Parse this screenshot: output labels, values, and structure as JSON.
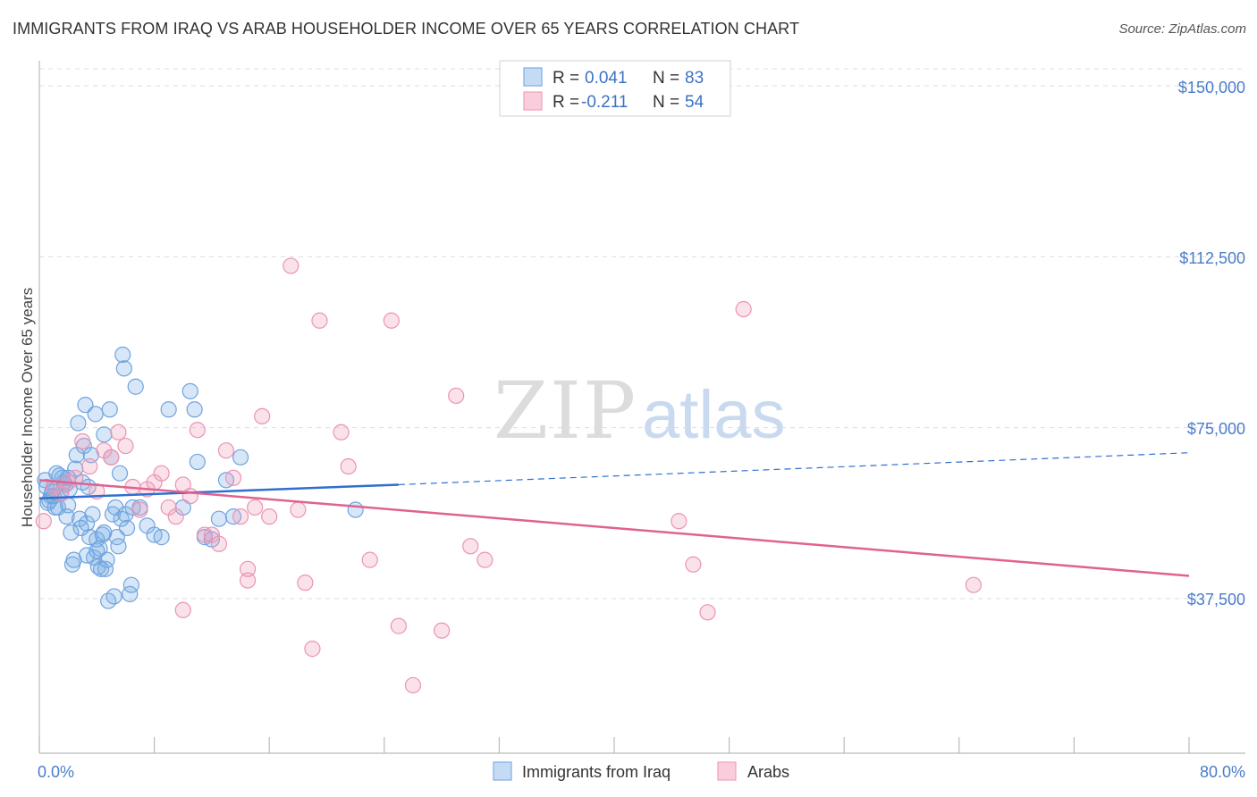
{
  "title": "IMMIGRANTS FROM IRAQ VS ARAB HOUSEHOLDER INCOME OVER 65 YEARS CORRELATION CHART",
  "source": "Source: ZipAtlas.com",
  "watermark": {
    "zip": "ZIP",
    "atlas": "atlas"
  },
  "chart_data": {
    "type": "scatter",
    "xlabel": "",
    "ylabel": "Householder Income Over 65 years",
    "xlim": [
      0,
      80
    ],
    "ylim": [
      7000,
      155000
    ],
    "x_tick_labels": [
      "0.0%",
      "80.0%"
    ],
    "y_ticks": [
      37500,
      75000,
      112500,
      150000
    ],
    "y_tick_labels": [
      "$37,500",
      "$75,000",
      "$112,500",
      "$150,000"
    ],
    "grid": "horizontal dashed",
    "legend_position": "top-center",
    "series": [
      {
        "name": "Immigrants from Iraq",
        "color": "#7aaee6",
        "stat_r_label": "R =",
        "stat_r": "0.041",
        "stat_n_label": "N =",
        "stat_n": "83",
        "trend": {
          "x": [
            0,
            25
          ],
          "y": [
            59500,
            62500
          ],
          "dashed_to": [
            80,
            69500
          ]
        },
        "points": [
          [
            0.4,
            63500
          ],
          [
            0.6,
            58500
          ],
          [
            0.8,
            60000
          ],
          [
            1.0,
            62000
          ],
          [
            1.2,
            65000
          ],
          [
            1.3,
            57500
          ],
          [
            1.5,
            60500
          ],
          [
            1.6,
            64000
          ],
          [
            1.8,
            62500
          ],
          [
            2.0,
            58000
          ],
          [
            2.1,
            61500
          ],
          [
            2.2,
            52000
          ],
          [
            2.3,
            45000
          ],
          [
            2.4,
            46000
          ],
          [
            2.5,
            66000
          ],
          [
            2.6,
            69000
          ],
          [
            2.7,
            76000
          ],
          [
            2.8,
            55000
          ],
          [
            3.0,
            63000
          ],
          [
            3.1,
            71000
          ],
          [
            3.2,
            80000
          ],
          [
            3.3,
            54000
          ],
          [
            3.4,
            62000
          ],
          [
            3.5,
            51000
          ],
          [
            3.6,
            69000
          ],
          [
            3.7,
            56000
          ],
          [
            3.8,
            46500
          ],
          [
            3.9,
            78000
          ],
          [
            4.0,
            50500
          ],
          [
            4.1,
            44500
          ],
          [
            4.2,
            48500
          ],
          [
            4.3,
            44000
          ],
          [
            4.4,
            51500
          ],
          [
            4.5,
            73500
          ],
          [
            4.6,
            44000
          ],
          [
            4.7,
            46000
          ],
          [
            4.8,
            37000
          ],
          [
            4.9,
            79000
          ],
          [
            5.0,
            68500
          ],
          [
            5.1,
            56000
          ],
          [
            5.2,
            38000
          ],
          [
            5.3,
            57500
          ],
          [
            5.4,
            51000
          ],
          [
            5.5,
            49000
          ],
          [
            5.6,
            65000
          ],
          [
            5.7,
            55000
          ],
          [
            5.8,
            91000
          ],
          [
            5.9,
            88000
          ],
          [
            6.0,
            56000
          ],
          [
            6.1,
            53000
          ],
          [
            6.3,
            38500
          ],
          [
            6.4,
            40500
          ],
          [
            6.5,
            57500
          ],
          [
            6.7,
            84000
          ],
          [
            7.0,
            57500
          ],
          [
            7.5,
            53500
          ],
          [
            8.0,
            51500
          ],
          [
            8.5,
            51000
          ],
          [
            9.0,
            79000
          ],
          [
            10.0,
            57500
          ],
          [
            10.5,
            83000
          ],
          [
            10.8,
            79000
          ],
          [
            11.0,
            67500
          ],
          [
            11.5,
            51000
          ],
          [
            12.0,
            50500
          ],
          [
            12.5,
            55000
          ],
          [
            13.0,
            63500
          ],
          [
            13.5,
            55500
          ],
          [
            14.0,
            68500
          ],
          [
            22.0,
            57000
          ],
          [
            0.5,
            62000
          ],
          [
            0.7,
            59000
          ],
          [
            0.9,
            61000
          ],
          [
            1.1,
            57500
          ],
          [
            1.4,
            64500
          ],
          [
            1.7,
            63000
          ],
          [
            1.9,
            55500
          ],
          [
            2.9,
            53000
          ],
          [
            3.3,
            47000
          ],
          [
            4.0,
            48000
          ],
          [
            4.5,
            52000
          ],
          [
            1.0,
            60000
          ],
          [
            2.0,
            64000
          ]
        ]
      },
      {
        "name": "Arabs",
        "color": "#f0a0bc",
        "stat_r_label": "R =",
        "stat_r": "-0.211",
        "stat_n_label": "N =",
        "stat_n": "54",
        "trend": {
          "x": [
            0,
            80
          ],
          "y": [
            63500,
            42500
          ]
        },
        "points": [
          [
            0.3,
            54500
          ],
          [
            1.0,
            62000
          ],
          [
            1.5,
            60500
          ],
          [
            2.0,
            63000
          ],
          [
            2.5,
            64000
          ],
          [
            3.0,
            72000
          ],
          [
            3.5,
            66500
          ],
          [
            4.0,
            61000
          ],
          [
            4.5,
            70000
          ],
          [
            5.0,
            68500
          ],
          [
            5.5,
            74000
          ],
          [
            6.0,
            71000
          ],
          [
            6.5,
            62000
          ],
          [
            7.0,
            57000
          ],
          [
            7.5,
            61500
          ],
          [
            8.0,
            63000
          ],
          [
            8.5,
            65000
          ],
          [
            9.0,
            57500
          ],
          [
            9.5,
            55500
          ],
          [
            10.0,
            62500
          ],
          [
            10.5,
            60000
          ],
          [
            11.0,
            74500
          ],
          [
            11.5,
            51500
          ],
          [
            12.0,
            51500
          ],
          [
            12.5,
            49500
          ],
          [
            13.0,
            70000
          ],
          [
            13.5,
            64000
          ],
          [
            14.0,
            55500
          ],
          [
            14.5,
            41500
          ],
          [
            15.0,
            57500
          ],
          [
            15.5,
            77500
          ],
          [
            16.0,
            55500
          ],
          [
            10.0,
            35000
          ],
          [
            17.5,
            110500
          ],
          [
            18.0,
            57000
          ],
          [
            18.5,
            41000
          ],
          [
            19.0,
            26500
          ],
          [
            19.5,
            98500
          ],
          [
            21.0,
            74000
          ],
          [
            21.5,
            66500
          ],
          [
            23.0,
            46000
          ],
          [
            24.5,
            98500
          ],
          [
            25.0,
            31500
          ],
          [
            26.0,
            18500
          ],
          [
            28.0,
            30500
          ],
          [
            29.0,
            82000
          ],
          [
            30.0,
            49000
          ],
          [
            31.0,
            46000
          ],
          [
            44.5,
            54500
          ],
          [
            45.5,
            45000
          ],
          [
            46.5,
            34500
          ],
          [
            49.0,
            101000
          ],
          [
            65.0,
            40500
          ],
          [
            14.5,
            44000
          ]
        ]
      }
    ]
  }
}
